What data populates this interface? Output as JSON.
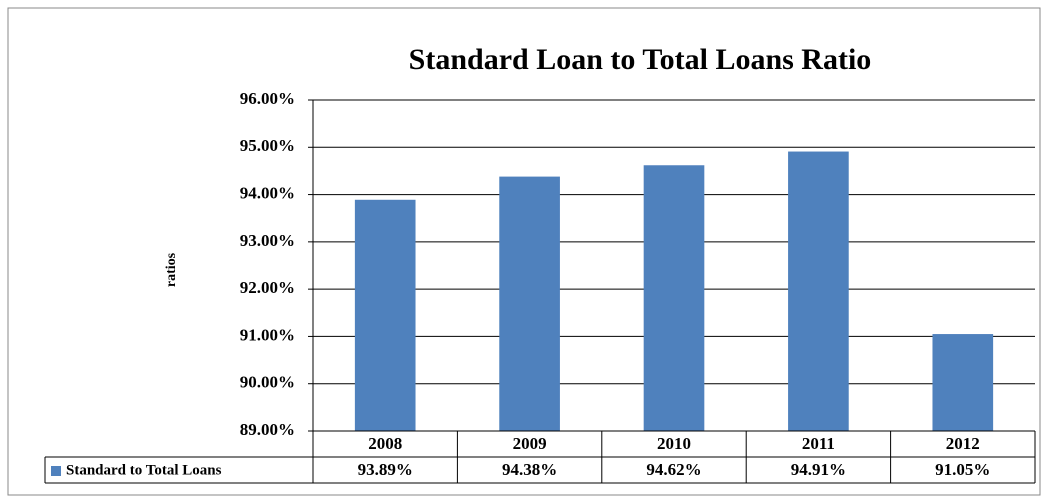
{
  "chart_data": {
    "type": "bar",
    "title": "Standard  Loan to Total Loans Ratio",
    "y_label": "ratios",
    "categories": [
      "2008",
      "2009",
      "2010",
      "2011",
      "2012"
    ],
    "series": [
      {
        "name": "Standard to Total Loans",
        "color": "#4f81bd",
        "values": [
          93.89,
          94.38,
          94.62,
          94.91,
          91.05
        ],
        "value_labels": [
          "93.89%",
          "94.38%",
          "94.62%",
          "94.91%",
          "91.05%"
        ]
      }
    ],
    "ylim": [
      89,
      96
    ],
    "yticks": [
      {
        "value": 89,
        "label": "89.00%"
      },
      {
        "value": 90,
        "label": "90.00%"
      },
      {
        "value": 91,
        "label": "91.00%"
      },
      {
        "value": 92,
        "label": "92.00%"
      },
      {
        "value": 93,
        "label": "93.00%"
      },
      {
        "value": 94,
        "label": "94.00%"
      },
      {
        "value": 95,
        "label": "95.00%"
      },
      {
        "value": 96,
        "label": "96.00%"
      }
    ],
    "grid": true,
    "data_table": true
  }
}
